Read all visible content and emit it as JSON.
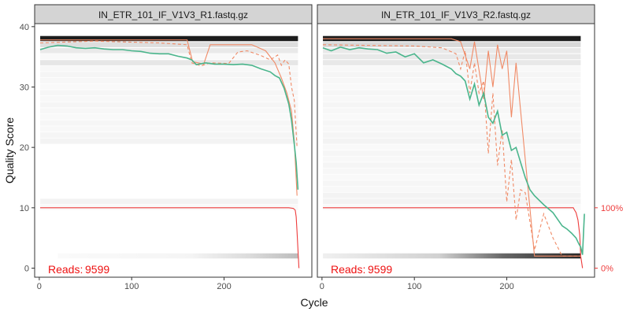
{
  "chart_data": {
    "type": "line",
    "ylabel": "Quality Score",
    "xlabel": "Cycle",
    "xlim": [
      -5,
      295
    ],
    "ylim": [
      -1.5,
      40.5
    ],
    "x_ticks": [
      "0",
      "100",
      "200"
    ],
    "y_ticks": [
      "0",
      "10",
      "20",
      "30",
      "40"
    ],
    "secondary_axis_ticks": [
      "100%",
      "0%"
    ],
    "grid": false,
    "colors": {
      "mean": "#4ab58c",
      "quantile": "#f08a66",
      "cumulative": "#ee3b3b",
      "reads_label": "#ee1111",
      "strip_bg": "#d4d4d4",
      "heat_light": "#eeeeee",
      "heat_dark": "#111111"
    },
    "panels": [
      {
        "title": "IN_ETR_101_IF_V1V3_R1.fastq.gz",
        "reads_label": "Reads:",
        "reads_value": "9599",
        "mean_quality": [
          [
            1,
            36.2
          ],
          [
            10,
            36.6
          ],
          [
            20,
            36.9
          ],
          [
            30,
            36.8
          ],
          [
            40,
            36.5
          ],
          [
            50,
            36.4
          ],
          [
            60,
            36.5
          ],
          [
            70,
            36.3
          ],
          [
            80,
            36.2
          ],
          [
            90,
            36.2
          ],
          [
            100,
            36.0
          ],
          [
            110,
            35.9
          ],
          [
            120,
            35.6
          ],
          [
            130,
            35.5
          ],
          [
            140,
            35.5
          ],
          [
            150,
            35.1
          ],
          [
            160,
            34.8
          ],
          [
            165,
            34.5
          ],
          [
            170,
            33.7
          ],
          [
            180,
            34.0
          ],
          [
            190,
            33.8
          ],
          [
            200,
            33.8
          ],
          [
            210,
            33.7
          ],
          [
            220,
            33.8
          ],
          [
            230,
            33.6
          ],
          [
            240,
            33.0
          ],
          [
            250,
            32.5
          ],
          [
            255,
            31.9
          ],
          [
            260,
            31.5
          ],
          [
            265,
            29.8
          ],
          [
            270,
            27.2
          ],
          [
            273,
            24.5
          ],
          [
            276,
            20.5
          ],
          [
            278,
            17.5
          ],
          [
            280,
            13.0
          ]
        ],
        "q25_quality": [
          [
            1,
            37.3
          ],
          [
            60,
            37.6
          ],
          [
            130,
            37.3
          ],
          [
            160,
            37.0
          ],
          [
            165,
            34.0
          ],
          [
            175,
            33.5
          ],
          [
            185,
            34.0
          ],
          [
            205,
            33.9
          ],
          [
            215,
            35.8
          ],
          [
            225,
            36.0
          ],
          [
            240,
            35.2
          ],
          [
            250,
            34.5
          ],
          [
            258,
            35.3
          ],
          [
            262,
            33.6
          ],
          [
            266,
            34.5
          ],
          [
            270,
            33.8
          ],
          [
            273,
            30.0
          ],
          [
            276,
            27.8
          ],
          [
            279,
            20.0
          ]
        ],
        "q75_quality": [
          [
            1,
            37.8
          ],
          [
            160,
            37.8
          ],
          [
            166,
            34.2
          ],
          [
            178,
            33.8
          ],
          [
            185,
            37.0
          ],
          [
            230,
            37.0
          ],
          [
            245,
            36.0
          ],
          [
            255,
            34.0
          ],
          [
            262,
            31.5
          ],
          [
            268,
            29.0
          ],
          [
            273,
            26.0
          ],
          [
            276,
            21.0
          ],
          [
            279,
            12.0
          ]
        ],
        "cumulative_reads_pct": [
          [
            1,
            100
          ],
          [
            270,
            100
          ],
          [
            275,
            99
          ],
          [
            277,
            96
          ],
          [
            278,
            85
          ],
          [
            279,
            60
          ],
          [
            280,
            30
          ],
          [
            281,
            0
          ]
        ],
        "heat_bands": [
          {
            "y": 38,
            "intensity": 0.95
          },
          {
            "y": 37,
            "intensity": 0.6
          },
          {
            "y": 36,
            "intensity": 0.4
          },
          {
            "y": 34,
            "intensity": 0.35
          },
          {
            "y": 2,
            "intensity": 0.3
          }
        ]
      },
      {
        "title": "IN_ETR_101_IF_V1V3_R2.fastq.gz",
        "reads_label": "Reads:",
        "reads_value": "9599",
        "mean_quality": [
          [
            1,
            36.5
          ],
          [
            10,
            36.0
          ],
          [
            20,
            36.6
          ],
          [
            30,
            36.2
          ],
          [
            40,
            36.5
          ],
          [
            50,
            36.3
          ],
          [
            60,
            36.2
          ],
          [
            70,
            35.6
          ],
          [
            80,
            35.8
          ],
          [
            90,
            35.0
          ],
          [
            100,
            35.5
          ],
          [
            110,
            34.0
          ],
          [
            120,
            34.5
          ],
          [
            130,
            33.8
          ],
          [
            140,
            33.0
          ],
          [
            145,
            32.2
          ],
          [
            150,
            31.8
          ],
          [
            155,
            31.0
          ],
          [
            160,
            28.0
          ],
          [
            165,
            30.5
          ],
          [
            170,
            27.0
          ],
          [
            175,
            29.0
          ],
          [
            180,
            25.0
          ],
          [
            185,
            24.0
          ],
          [
            190,
            26.0
          ],
          [
            195,
            22.0
          ],
          [
            200,
            22.5
          ],
          [
            205,
            19.5
          ],
          [
            210,
            20.0
          ],
          [
            215,
            17.5
          ],
          [
            220,
            15.0
          ],
          [
            225,
            13.0
          ],
          [
            230,
            12.0
          ],
          [
            240,
            10.5
          ],
          [
            250,
            9.2
          ],
          [
            260,
            7.0
          ],
          [
            265,
            6.5
          ],
          [
            270,
            5.8
          ],
          [
            275,
            5.0
          ],
          [
            278,
            4.0
          ],
          [
            280,
            3.5
          ],
          [
            282,
            2.2
          ],
          [
            284,
            9.0
          ]
        ],
        "q25_quality": [
          [
            1,
            37.0
          ],
          [
            100,
            36.8
          ],
          [
            130,
            36.5
          ],
          [
            145,
            35.5
          ],
          [
            150,
            33.0
          ],
          [
            155,
            36.0
          ],
          [
            160,
            29.0
          ],
          [
            165,
            34.0
          ],
          [
            170,
            29.0
          ],
          [
            175,
            31.0
          ],
          [
            180,
            19.0
          ],
          [
            185,
            29.0
          ],
          [
            190,
            17.0
          ],
          [
            195,
            23.0
          ],
          [
            200,
            11.0
          ],
          [
            205,
            18.0
          ],
          [
            210,
            8.0
          ],
          [
            215,
            13.0
          ],
          [
            220,
            12.5
          ],
          [
            230,
            3.0
          ],
          [
            240,
            9.0
          ],
          [
            250,
            5.0
          ],
          [
            260,
            2.0
          ],
          [
            270,
            2.0
          ],
          [
            280,
            2.0
          ]
        ],
        "q75_quality": [
          [
            1,
            38.0
          ],
          [
            140,
            38.0
          ],
          [
            150,
            37.5
          ],
          [
            160,
            33.0
          ],
          [
            165,
            37.5
          ],
          [
            175,
            28.0
          ],
          [
            180,
            36.0
          ],
          [
            185,
            30.0
          ],
          [
            190,
            37.0
          ],
          [
            195,
            33.0
          ],
          [
            200,
            36.0
          ],
          [
            205,
            25.0
          ],
          [
            210,
            34.0
          ],
          [
            220,
            18.0
          ],
          [
            230,
            2.0
          ],
          [
            260,
            2.0
          ],
          [
            280,
            2.0
          ]
        ],
        "cumulative_reads_pct": [
          [
            1,
            100
          ],
          [
            270,
            100
          ],
          [
            272,
            100
          ],
          [
            273,
            97
          ],
          [
            275,
            92
          ],
          [
            277,
            80
          ],
          [
            279,
            55
          ],
          [
            280,
            20
          ],
          [
            282,
            0
          ]
        ],
        "heat_bands": [
          {
            "y": 38,
            "intensity": 0.95
          },
          {
            "y": 37,
            "intensity": 0.7
          },
          {
            "y": 36,
            "intensity": 0.4
          },
          {
            "y": 35,
            "intensity": 0.35
          },
          {
            "y": 34,
            "intensity": 0.3
          },
          {
            "y": 2,
            "intensity": 0.9
          }
        ]
      }
    ]
  }
}
